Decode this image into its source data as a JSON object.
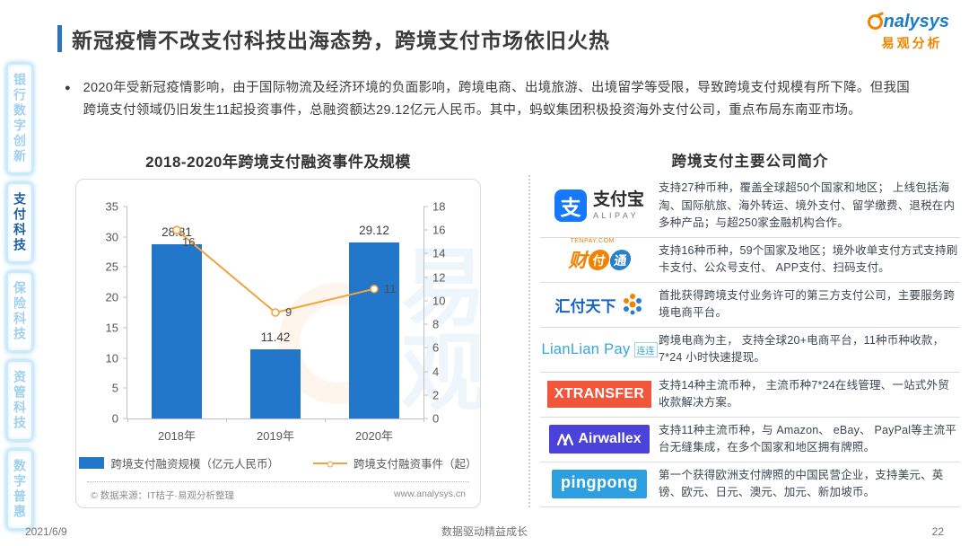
{
  "header": {
    "title": "新冠疫情不改支付科技出海态势，跨境支付市场依旧火热"
  },
  "logo": {
    "brand": "analysys",
    "brand_rest": "nalysys",
    "brand_cn": "易观分析"
  },
  "sidebar": {
    "items": [
      {
        "id": "bank-digital",
        "label": "银行数字创新",
        "active": false
      },
      {
        "id": "payment-tech",
        "label": "支付科技",
        "active": true
      },
      {
        "id": "insurance-tech",
        "label": "保险科技",
        "active": false
      },
      {
        "id": "asset-tech",
        "label": "资管科技",
        "active": false
      },
      {
        "id": "digital-inclusive",
        "label": "数字普惠",
        "active": false
      }
    ]
  },
  "summary": {
    "bullet": "●",
    "text": "2020年受新冠疫情影响，由于国际物流及经济环境的负面影响，跨境电商、出境旅游、出境留学等受限，导致跨境支付规模有所下降。但我国跨境支付领域仍旧发生11起投资事件，总融资额达29.12亿元人民币。其中，蚂蚁集团积极投资海外支付公司，重点布局东南亚市场。"
  },
  "chart_data": {
    "type": "bar",
    "title": "2018-2020年跨境支付融资事件及规模",
    "categories": [
      "2018年",
      "2019年",
      "2020年"
    ],
    "series": [
      {
        "name": "跨境支付融资规模（亿元人民币）",
        "chart": "bar",
        "axis": "left",
        "values": [
          28.81,
          11.42,
          29.12
        ],
        "color": "#2277cb"
      },
      {
        "name": "跨境支付融资事件（起）",
        "chart": "line",
        "axis": "right",
        "values": [
          16,
          9,
          11
        ],
        "color": "#f2a33c"
      }
    ],
    "left_axis": {
      "min": 0,
      "max": 35,
      "ticks": [
        35,
        30,
        25,
        20,
        15,
        10,
        5,
        0
      ]
    },
    "right_axis": {
      "min": 0,
      "max": 18,
      "ticks": [
        18,
        16,
        14,
        12,
        10,
        8,
        6,
        4,
        2,
        0
      ]
    },
    "grid": false,
    "legend_position": "bottom"
  },
  "chart_footer": {
    "source": "© 数据来源：IT桔子·易观分析整理",
    "site": "www.analysys.cn"
  },
  "companies": {
    "title": "跨境支付主要公司简介",
    "rows": [
      {
        "id": "alipay",
        "logo": {
          "mark": "支",
          "name": "支付宝",
          "sub": "ALIPAY"
        },
        "desc": "支持27种币种，覆盖全球超50个国家和地区； 上线包括海淘、国际航旅、海外转运、境外支付、留学缴费、退税在内多种产品；与超250家金融机构合作。"
      },
      {
        "id": "tenpay",
        "logo": {
          "name": "财付通",
          "sub": "TENPAY.COM"
        },
        "desc": "支持16种币种，59个国家及地区；境外收单支付方式支持刷卡支付、公众号支付、 APP支付、扫码支付。"
      },
      {
        "id": "huifu",
        "logo": {
          "name": "汇付天下"
        },
        "desc": "首批获得跨境支付业务许可的第三方支付公司，主要服务跨境电商平台。"
      },
      {
        "id": "lianlian",
        "logo": {
          "name": "LianLian Pay",
          "sub": "连连"
        },
        "desc": "跨境电商为主， 支持全球20+电商平台，11种币种收款，7*24 小时快速提现。"
      },
      {
        "id": "xtransfer",
        "logo": {
          "name": "XTRANSFER"
        },
        "desc": "支持14种主流币种， 主流币种7*24在线管理、一站式外贸收款解决方案。"
      },
      {
        "id": "airwallex",
        "logo": {
          "name": "Airwallex"
        },
        "desc": "支持11种主流币种，与 Amazon、 eBay、 PayPal等主流平台无缝集成，在多个国家和地区拥有牌照。"
      },
      {
        "id": "pingpong",
        "logo": {
          "name": "pingpong"
        },
        "desc": "第一个获得欧洲支付牌照的中国民营企业，支持美元、英镑、欧元、日元、澳元、加元、新加坡币。"
      }
    ]
  },
  "footer": {
    "date": "2021/6/9",
    "slogan": "数据驱动精益成长",
    "page": "22"
  },
  "colors": {
    "accent_blue": "#2e75b6",
    "bar": "#2277cb",
    "line": "#f2a33c",
    "logo_orange": "#f08300",
    "logo_blue": "#1b7fc4",
    "sidebar_active": "#1c5fa9"
  }
}
